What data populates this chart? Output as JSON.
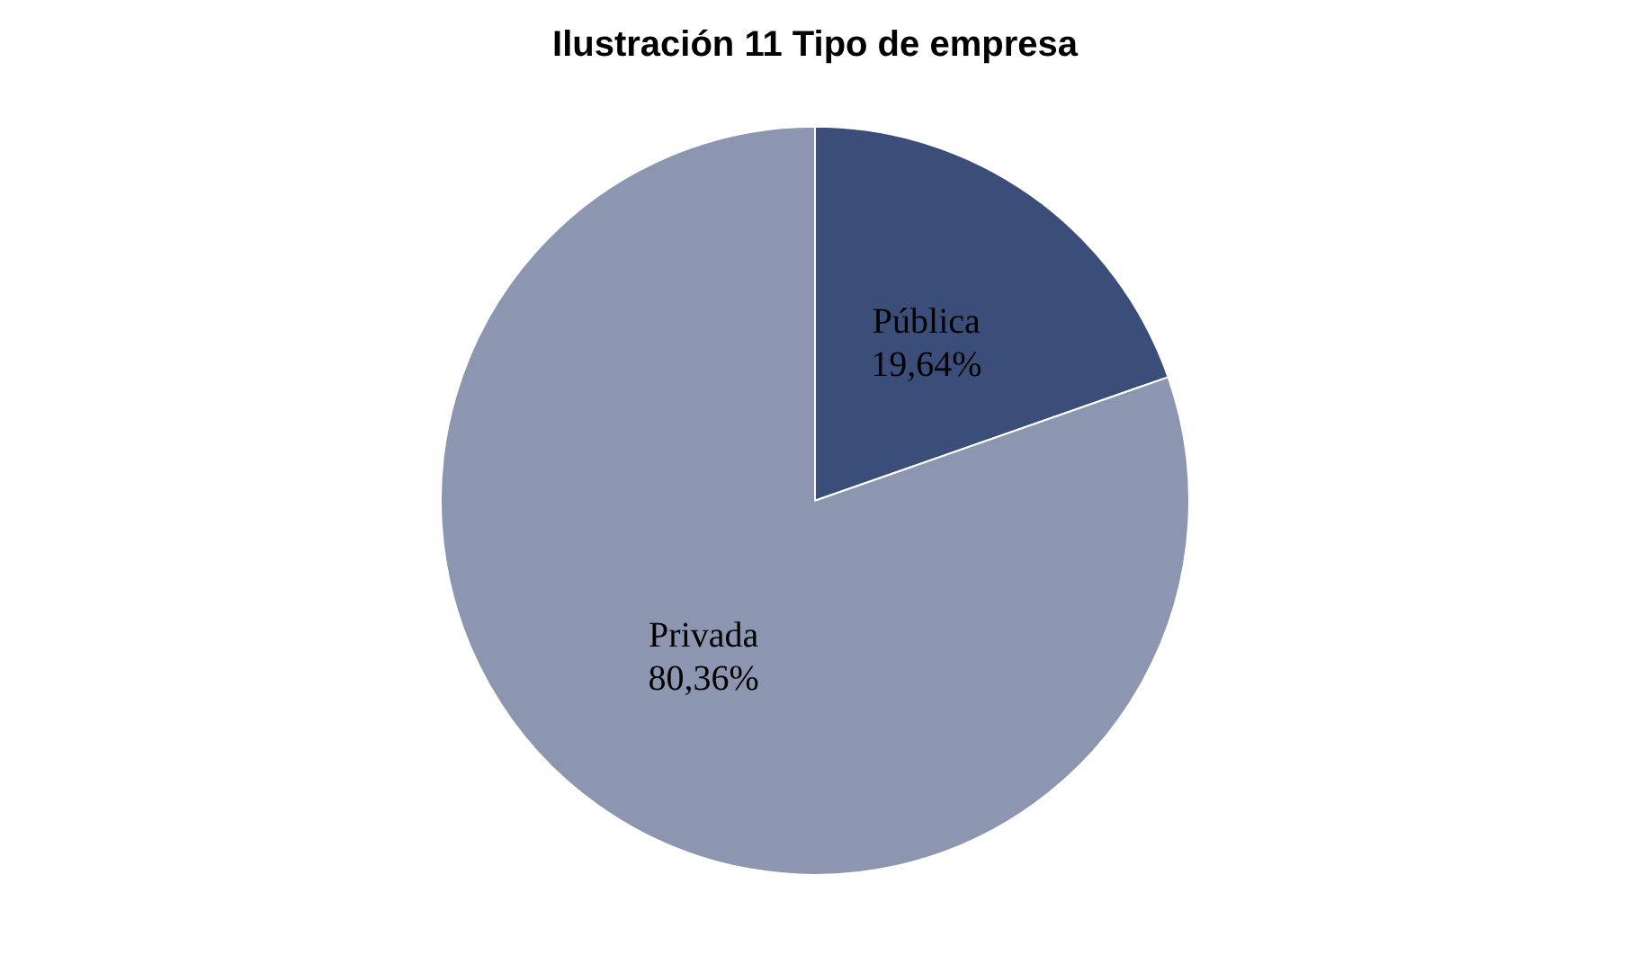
{
  "chart_data": {
    "type": "pie",
    "title": "Ilustración 11 Tipo de empresa",
    "categories": [
      "Pública",
      "Privada"
    ],
    "values": [
      19.64,
      80.36
    ],
    "value_labels": [
      "19,64%",
      "80,36%"
    ],
    "colors": [
      "#3b4e7a",
      "#8c96b0"
    ],
    "legend": false
  }
}
